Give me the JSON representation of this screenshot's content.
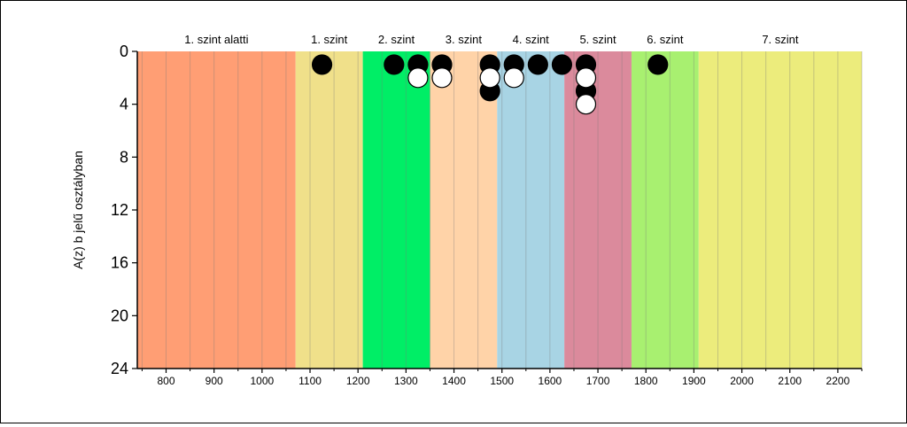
{
  "chart_data": {
    "type": "scatter",
    "title": "",
    "xlabel": "",
    "ylabel": "A(z) b jelű osztályban",
    "xlim": [
      740,
      2250
    ],
    "ylim": [
      0,
      24
    ],
    "y_inverted": true,
    "x_ticks": [
      800,
      900,
      1000,
      1100,
      1200,
      1300,
      1400,
      1500,
      1600,
      1700,
      1800,
      1900,
      2000,
      2100,
      2200
    ],
    "y_ticks": [
      0,
      4,
      8,
      12,
      16,
      20,
      24
    ],
    "grid": "vertical lines every 50 units",
    "bands": [
      {
        "label": "1. szint alatti",
        "from": 740,
        "to": 1070,
        "color": "#FF9E74"
      },
      {
        "label": "1. szint",
        "from": 1070,
        "to": 1210,
        "color": "#F0E08A"
      },
      {
        "label": "2. szint",
        "from": 1210,
        "to": 1350,
        "color": "#00EE66"
      },
      {
        "label": "3. szint",
        "from": 1350,
        "to": 1490,
        "color": "#FFD3A8"
      },
      {
        "label": "4. szint",
        "from": 1490,
        "to": 1630,
        "color": "#A8D4E4"
      },
      {
        "label": "5. szint",
        "from": 1630,
        "to": 1770,
        "color": "#DB8A9C"
      },
      {
        "label": "6. szint",
        "from": 1770,
        "to": 1910,
        "color": "#A8F070"
      },
      {
        "label": "7. szint",
        "from": 1910,
        "to": 2250,
        "color": "#ECEC7C"
      }
    ],
    "series": [
      {
        "marker": "filled",
        "color": "#000000",
        "points": [
          {
            "x": 1125,
            "y": 1
          },
          {
            "x": 1275,
            "y": 1
          },
          {
            "x": 1325,
            "y": 1
          },
          {
            "x": 1375,
            "y": 1
          },
          {
            "x": 1475,
            "y": 1
          },
          {
            "x": 1475,
            "y": 3
          },
          {
            "x": 1525,
            "y": 1
          },
          {
            "x": 1575,
            "y": 1
          },
          {
            "x": 1625,
            "y": 1
          },
          {
            "x": 1675,
            "y": 1
          },
          {
            "x": 1675,
            "y": 3
          },
          {
            "x": 1825,
            "y": 1
          }
        ]
      },
      {
        "marker": "open",
        "color": "#ffffff",
        "points": [
          {
            "x": 1325,
            "y": 2
          },
          {
            "x": 1375,
            "y": 2
          },
          {
            "x": 1475,
            "y": 2
          },
          {
            "x": 1525,
            "y": 2
          },
          {
            "x": 1675,
            "y": 2
          },
          {
            "x": 1675,
            "y": 4
          }
        ]
      }
    ]
  }
}
